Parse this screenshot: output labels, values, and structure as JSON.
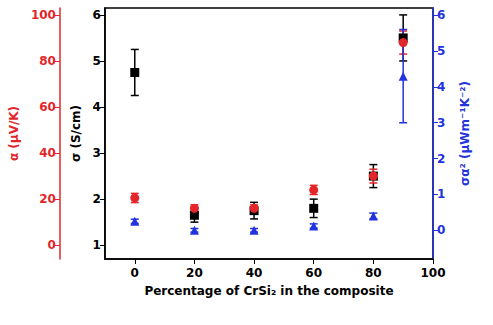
{
  "chart_data": {
    "type": "scatter",
    "xlabel": "Percentage of CrSi₂ in the composite",
    "ylabel": "α (μV/K)",
    "y2label": "σ (S/cm)",
    "y3label": "σα² (μWm⁻¹K⁻²)",
    "x": [
      0,
      20,
      40,
      60,
      80,
      90
    ],
    "xlim": [
      -10,
      100
    ],
    "xticks": [
      0,
      20,
      40,
      60,
      80,
      100
    ],
    "ylim": [
      -6,
      103
    ],
    "yticks": [
      0,
      20,
      40,
      60,
      80,
      100
    ],
    "y2lim": [
      0.7,
      6.15
    ],
    "y2ticks": [
      1,
      2,
      3,
      4,
      5,
      6
    ],
    "y3lim": [
      -0.8,
      6.2
    ],
    "y3ticks": [
      0,
      1,
      2,
      3,
      4,
      5,
      6
    ],
    "grid": false,
    "series": [
      {
        "axis": "y2",
        "color": "#000000",
        "marker": "square",
        "values": [
          4.75,
          1.65,
          1.75,
          1.8,
          2.5,
          5.5
        ],
        "errors": [
          0.5,
          0.15,
          0.18,
          0.2,
          0.25,
          0.5
        ]
      },
      {
        "axis": "y",
        "color": "#e3262a",
        "marker": "circle",
        "values": [
          20.5,
          16,
          16,
          24,
          30,
          88
        ],
        "errors": [
          2,
          1.5,
          1.5,
          2,
          3,
          5
        ]
      },
      {
        "axis": "y3",
        "color": "#2233dd",
        "marker": "triangle",
        "values": [
          0.25,
          0.0,
          0.0,
          0.12,
          0.4,
          4.3
        ],
        "errors": [
          0.06,
          0.05,
          0.05,
          0.06,
          0.08,
          1.3
        ]
      }
    ]
  }
}
